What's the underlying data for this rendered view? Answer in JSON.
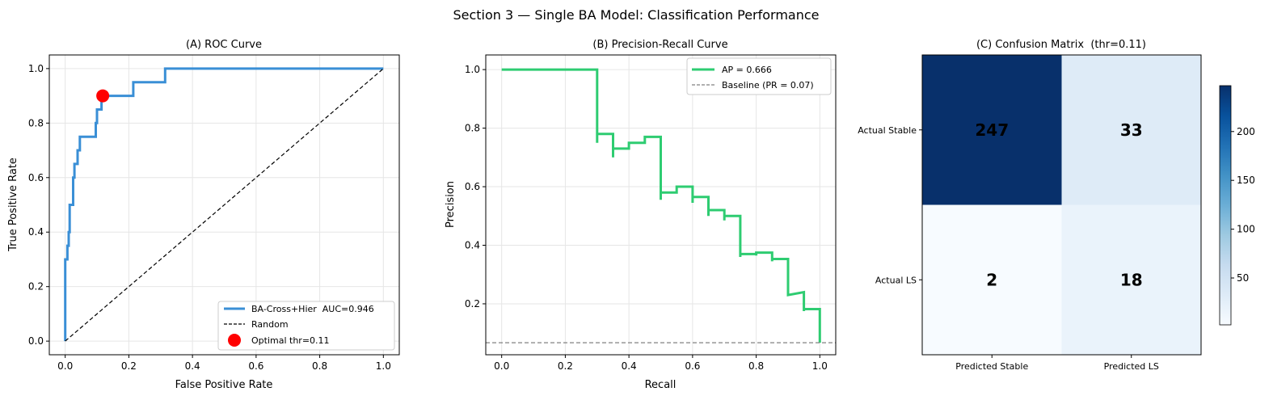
{
  "suptitle": "Section 3 — Single BA Model: Classification Performance",
  "chart_data": [
    {
      "type": "line",
      "title": "(A) ROC Curve",
      "xlabel": "False Positive Rate",
      "ylabel": "True Positive Rate",
      "xlim": [
        -0.05,
        1.05
      ],
      "ylim": [
        -0.05,
        1.05
      ],
      "xticks": [
        0.0,
        0.2,
        0.4,
        0.6,
        0.8,
        1.0
      ],
      "yticks": [
        0.0,
        0.2,
        0.4,
        0.6,
        0.8,
        1.0
      ],
      "xtick_labels": [
        "0.0",
        "0.2",
        "0.4",
        "0.6",
        "0.8",
        "1.0"
      ],
      "ytick_labels": [
        "0.0",
        "0.2",
        "0.4",
        "0.6",
        "0.8",
        "1.0"
      ],
      "grid": true,
      "legend_position": "lower-right",
      "series": [
        {
          "name": "BA-Cross+Hier  AUC=0.946",
          "color": "#3a8fd6",
          "style": "solid",
          "x": [
            0,
            0,
            0.007,
            0.007,
            0.011,
            0.011,
            0.014,
            0.014,
            0.025,
            0.025,
            0.029,
            0.029,
            0.039,
            0.039,
            0.046,
            0.046,
            0.054,
            0.054,
            0.096,
            0.096,
            0.1,
            0.1,
            0.114,
            0.114,
            0.118,
            0.118,
            0.214,
            0.214,
            0.314,
            0.314,
            1.0
          ],
          "y": [
            0,
            0.3,
            0.3,
            0.35,
            0.35,
            0.4,
            0.4,
            0.5,
            0.5,
            0.6,
            0.6,
            0.65,
            0.65,
            0.7,
            0.7,
            0.75,
            0.75,
            0.75,
            0.75,
            0.8,
            0.8,
            0.85,
            0.85,
            0.9,
            0.9,
            0.9,
            0.9,
            0.95,
            0.95,
            1.0,
            1.0
          ]
        },
        {
          "name": "Random",
          "color": "#000000",
          "style": "dashed",
          "x": [
            0,
            1
          ],
          "y": [
            0,
            1
          ]
        }
      ],
      "points": [
        {
          "name": "Optimal thr=0.11",
          "color": "#ff0000",
          "x": 0.118,
          "y": 0.9
        }
      ]
    },
    {
      "type": "line",
      "title": "(B) Precision-Recall Curve",
      "xlabel": "Recall",
      "ylabel": "Precision",
      "xlim": [
        -0.05,
        1.05
      ],
      "ylim": [
        0.026,
        1.05
      ],
      "xticks": [
        0.0,
        0.2,
        0.4,
        0.6,
        0.8,
        1.0
      ],
      "yticks": [
        0.2,
        0.4,
        0.6,
        0.8,
        1.0
      ],
      "xtick_labels": [
        "0.0",
        "0.2",
        "0.4",
        "0.6",
        "0.8",
        "1.0"
      ],
      "ytick_labels": [
        "0.2",
        "0.4",
        "0.6",
        "0.8",
        "1.0"
      ],
      "grid": true,
      "legend_position": "upper-right",
      "series": [
        {
          "name": "AP = 0.666",
          "color": "#2ecc71",
          "style": "solid",
          "x": [
            0,
            0.3,
            0.3,
            0.3,
            0.35,
            0.35,
            0.35,
            0.4,
            0.4,
            0.45,
            0.45,
            0.5,
            0.5,
            0.5,
            0.55,
            0.55,
            0.6,
            0.6,
            0.6,
            0.65,
            0.65,
            0.65,
            0.7,
            0.7,
            0.7,
            0.75,
            0.75,
            0.75,
            0.8,
            0.8,
            0.8,
            0.85,
            0.85,
            0.85,
            0.9,
            0.9,
            0.95,
            0.95,
            0.95,
            1.0,
            1.0
          ],
          "y": [
            1.0,
            1.0,
            0.75,
            0.78,
            0.78,
            0.7,
            0.73,
            0.73,
            0.75,
            0.75,
            0.77,
            0.77,
            0.555,
            0.58,
            0.58,
            0.6,
            0.6,
            0.545,
            0.565,
            0.565,
            0.5,
            0.52,
            0.52,
            0.485,
            0.5,
            0.5,
            0.36,
            0.37,
            0.37,
            0.365,
            0.375,
            0.375,
            0.345,
            0.353,
            0.353,
            0.23,
            0.24,
            0.175,
            0.182,
            0.182,
            0.067
          ]
        },
        {
          "name": "Baseline (PR = 0.07)",
          "color": "#808080",
          "style": "dashed",
          "x": [
            -0.05,
            1.05
          ],
          "y": [
            0.067,
            0.067
          ]
        }
      ]
    },
    {
      "type": "heatmap",
      "title": "(C) Confusion Matrix  (thr=0.11)",
      "row_labels": [
        "Actual Stable",
        "Actual LS"
      ],
      "col_labels": [
        "Predicted Stable",
        "Predicted LS"
      ],
      "values": [
        [
          247,
          33
        ],
        [
          2,
          18
        ]
      ],
      "colormap": "Blues",
      "vmin": 2,
      "vmax": 247,
      "colorbar_ticks": [
        50,
        100,
        150,
        200
      ],
      "colorbar_tick_labels": [
        "50",
        "100",
        "150",
        "200"
      ]
    }
  ]
}
